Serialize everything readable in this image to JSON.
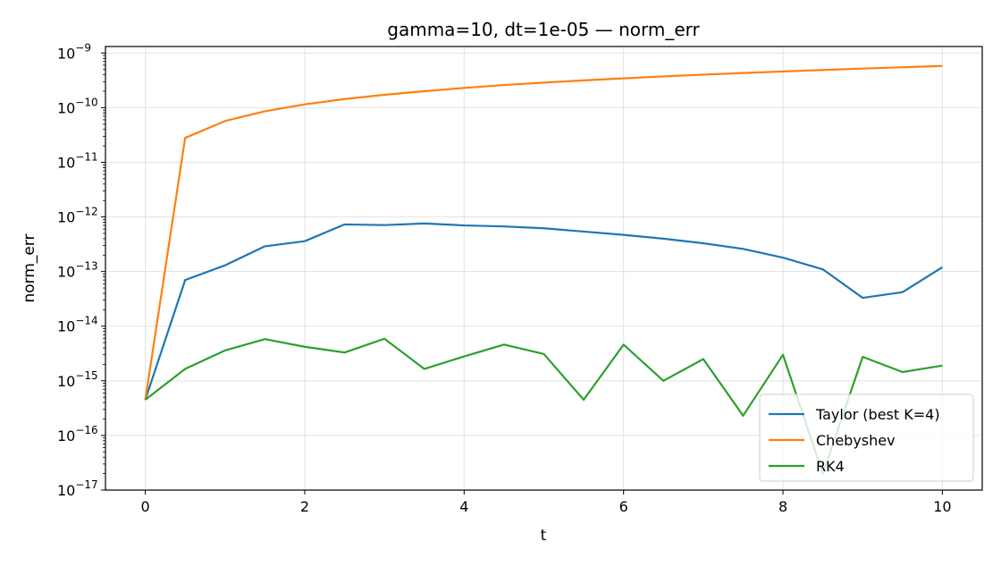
{
  "chart_data": {
    "type": "line",
    "title": "gamma=10, dt=1e-05 — norm_err",
    "xlabel": "t",
    "ylabel": "norm_err",
    "yscale": "log",
    "xlim": [
      -0.5,
      10.5
    ],
    "ylim_exp": [
      -17,
      -8.88
    ],
    "xticks": [
      0,
      2,
      4,
      6,
      8,
      10
    ],
    "xtick_labels": [
      "0",
      "2",
      "4",
      "6",
      "8",
      "10"
    ],
    "yticks_exp": [
      -17,
      -16,
      -15,
      -14,
      -13,
      -12,
      -11,
      -10,
      -9
    ],
    "ytick_base": "10",
    "grid": true,
    "legend_position": "lower-right",
    "x": [
      0,
      0.5,
      1,
      1.5,
      2,
      2.5,
      3,
      3.5,
      4,
      4.5,
      5,
      5.5,
      6,
      6.5,
      7,
      7.5,
      8,
      8.5,
      9,
      9.5,
      10
    ],
    "series": [
      {
        "name": "Taylor (best K=4)",
        "color": "#1f77b4",
        "values": [
          4.5e-16,
          7e-14,
          1.3e-13,
          2.9e-13,
          3.6e-13,
          7.3e-13,
          7.1e-13,
          7.6e-13,
          7e-13,
          6.7e-13,
          6.2e-13,
          5.4e-13,
          4.7e-13,
          4e-13,
          3.3e-13,
          2.6e-13,
          1.8e-13,
          1.1e-13,
          3.3e-14,
          4.2e-14,
          1.2e-13
        ]
      },
      {
        "name": "Chebyshev",
        "color": "#ff7f0e",
        "values": [
          4.5e-16,
          2.8e-11,
          5.7e-11,
          8.6e-11,
          1.15e-10,
          1.44e-10,
          1.72e-10,
          2e-10,
          2.3e-10,
          2.6e-10,
          2.88e-10,
          3.16e-10,
          3.44e-10,
          3.74e-10,
          4.03e-10,
          4.32e-10,
          4.6e-10,
          4.9e-10,
          5.2e-10,
          5.5e-10,
          5.8e-10
        ]
      },
      {
        "name": "RK4",
        "color": "#2ca02c",
        "values": [
          4.5e-16,
          1.65e-15,
          3.6e-15,
          5.8e-15,
          4.2e-15,
          3.3e-15,
          5.9e-15,
          1.65e-15,
          2.8e-15,
          4.6e-15,
          3.1e-15,
          4.5e-16,
          4.6e-15,
          1e-15,
          2.5e-15,
          2.3e-16,
          3e-15,
          2e-17,
          2.75e-15,
          1.45e-15,
          1.9e-15
        ]
      }
    ]
  }
}
